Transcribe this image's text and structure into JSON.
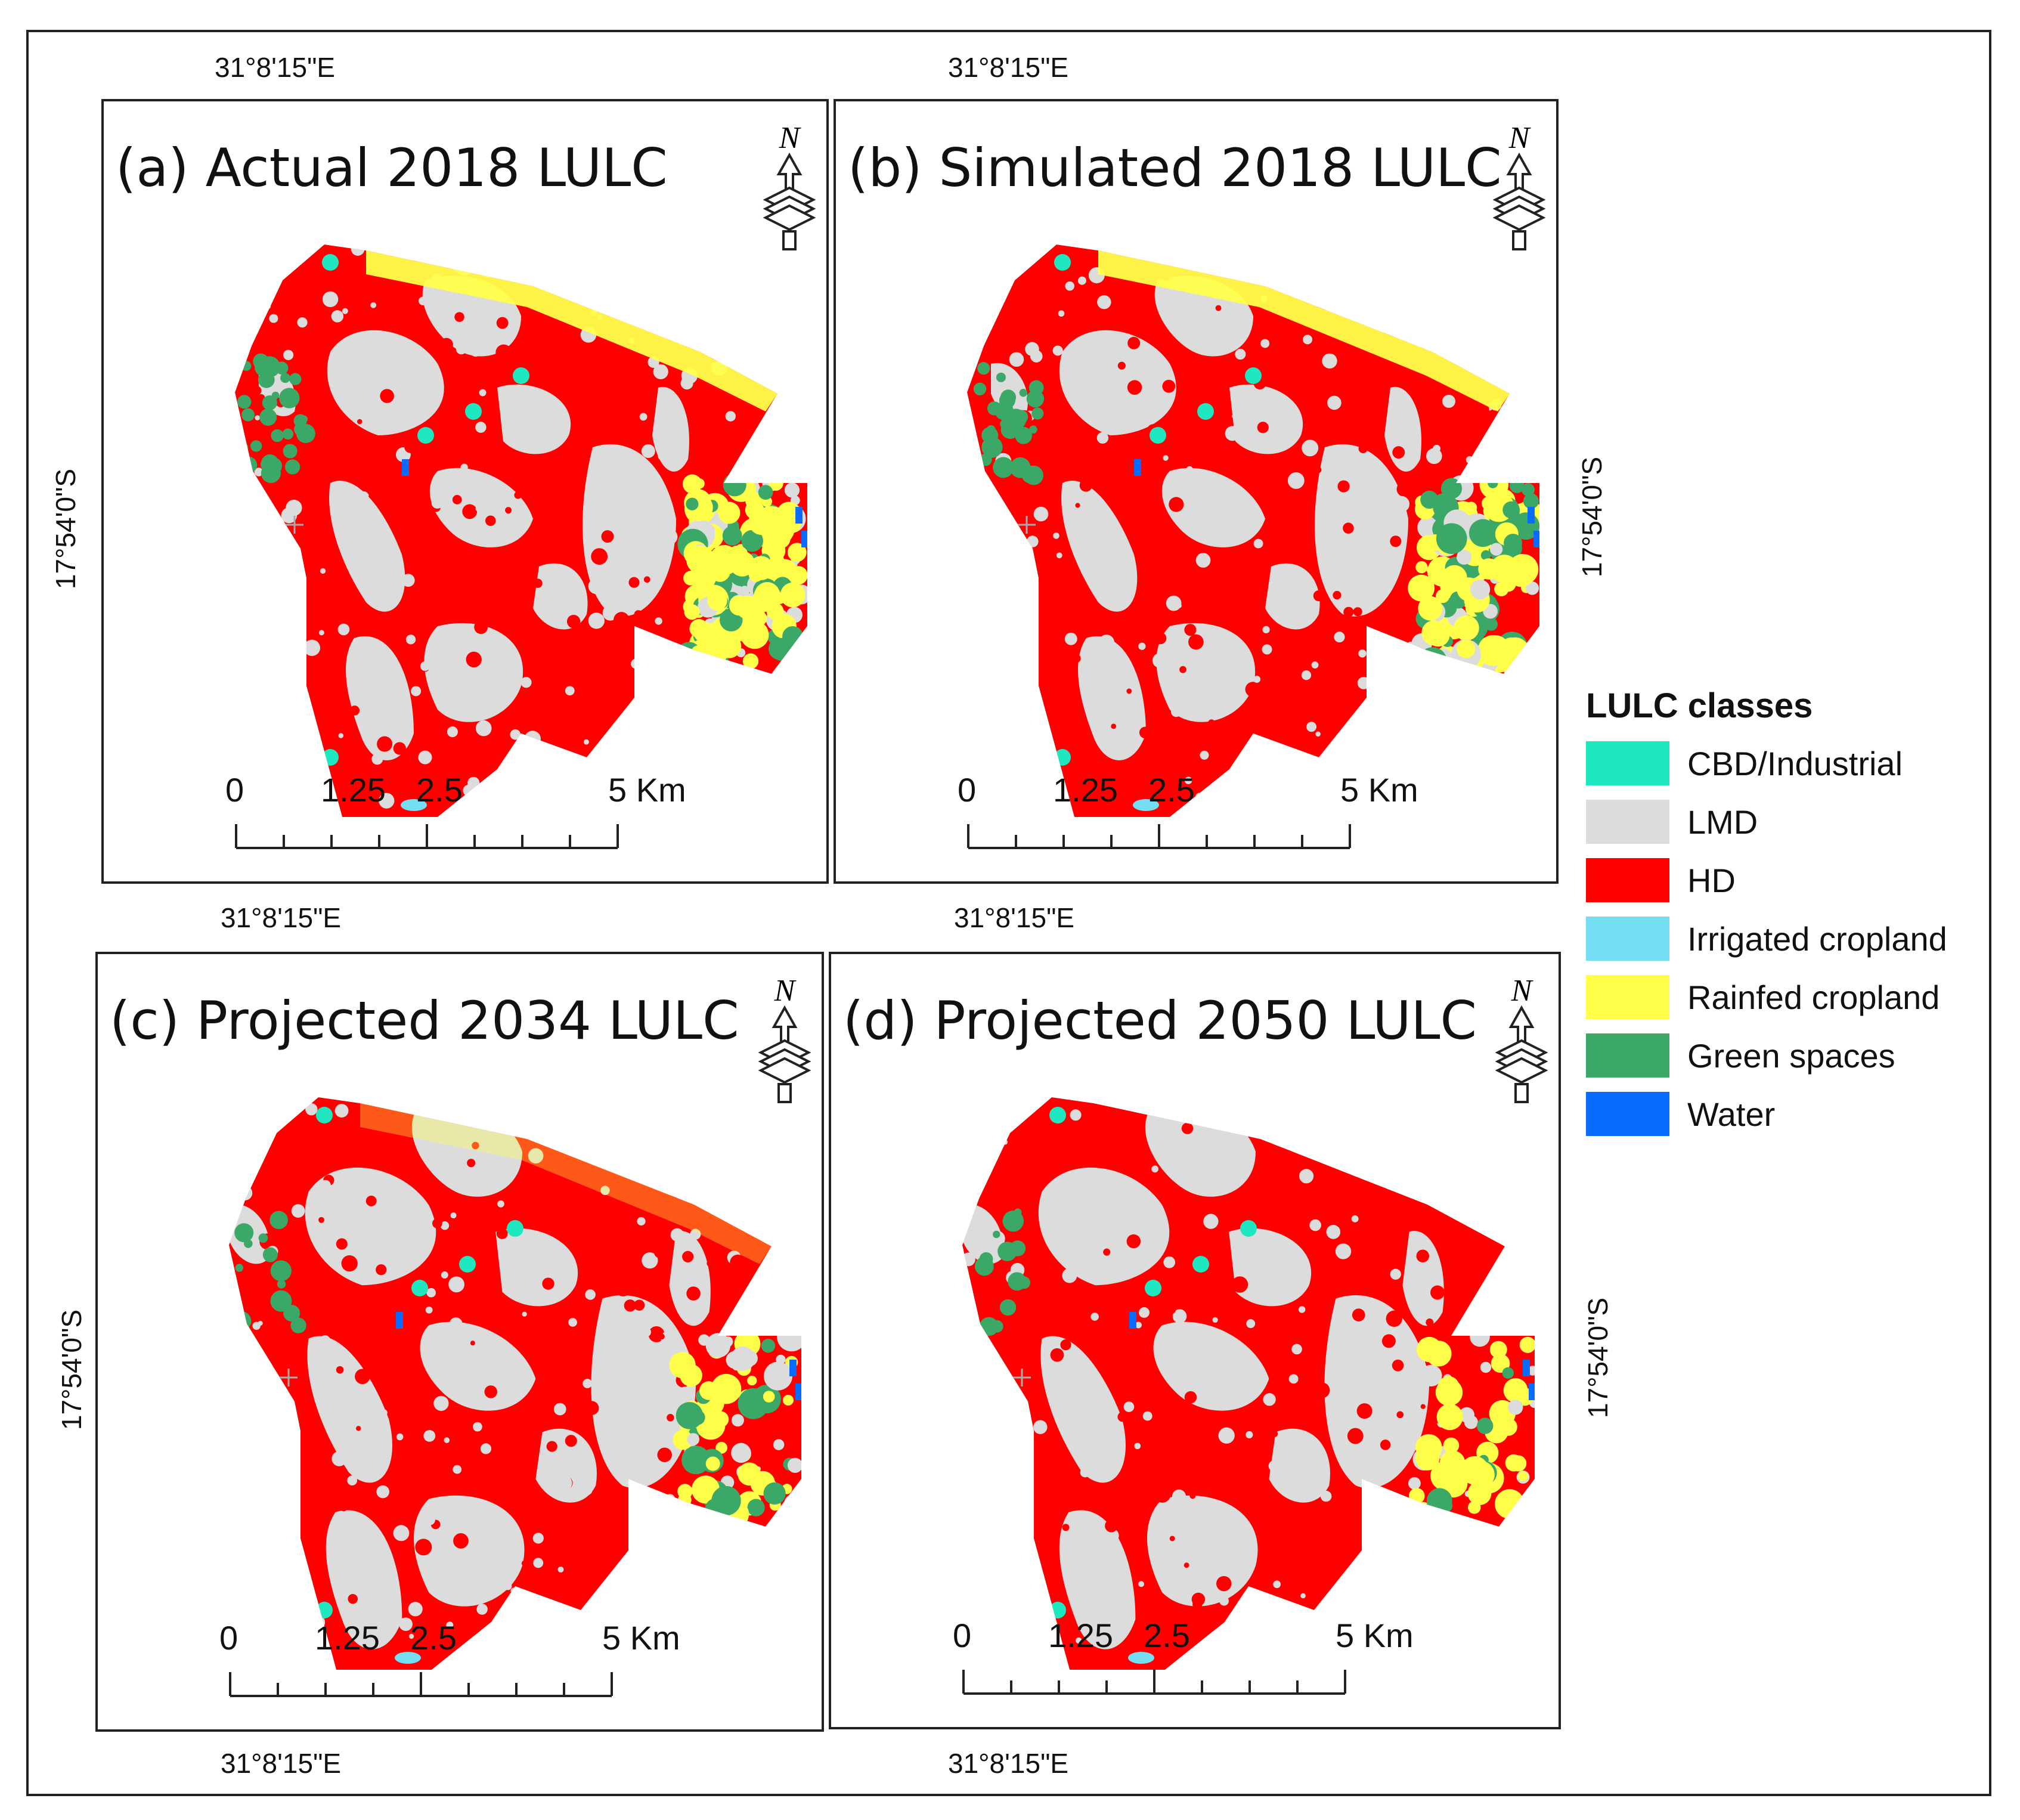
{
  "figure": {
    "panels": [
      {
        "id": "a",
        "title": "(a) Actual 2018 LULC"
      },
      {
        "id": "b",
        "title": "(b) Simulated 2018 LULC"
      },
      {
        "id": "c",
        "title": "(c) Projected 2034 LULC"
      },
      {
        "id": "d",
        "title": "(d) Projected 2050 LULC"
      }
    ],
    "coordinates": {
      "longitude": "31°8'15\"E",
      "latitude": "17°54'0\"S"
    },
    "north_arrow": "N",
    "scale_bar": {
      "ticks": [
        "0",
        "1.25",
        "2.5",
        "5 Km"
      ]
    },
    "legend": {
      "title": "LULC classes",
      "classes": [
        {
          "label": "CBD/Industrial",
          "color": "#1ee8c0"
        },
        {
          "label": "LMD",
          "color": "#dcdcdc"
        },
        {
          "label": "HD",
          "color": "#ff0000"
        },
        {
          "label": "Irrigated cropland",
          "color": "#74dff2"
        },
        {
          "label": "Rainfed cropland",
          "color": "#ffff4a"
        },
        {
          "label": "Green spaces",
          "color": "#3ba867"
        },
        {
          "label": "Water",
          "color": "#0a6cff"
        }
      ]
    }
  }
}
